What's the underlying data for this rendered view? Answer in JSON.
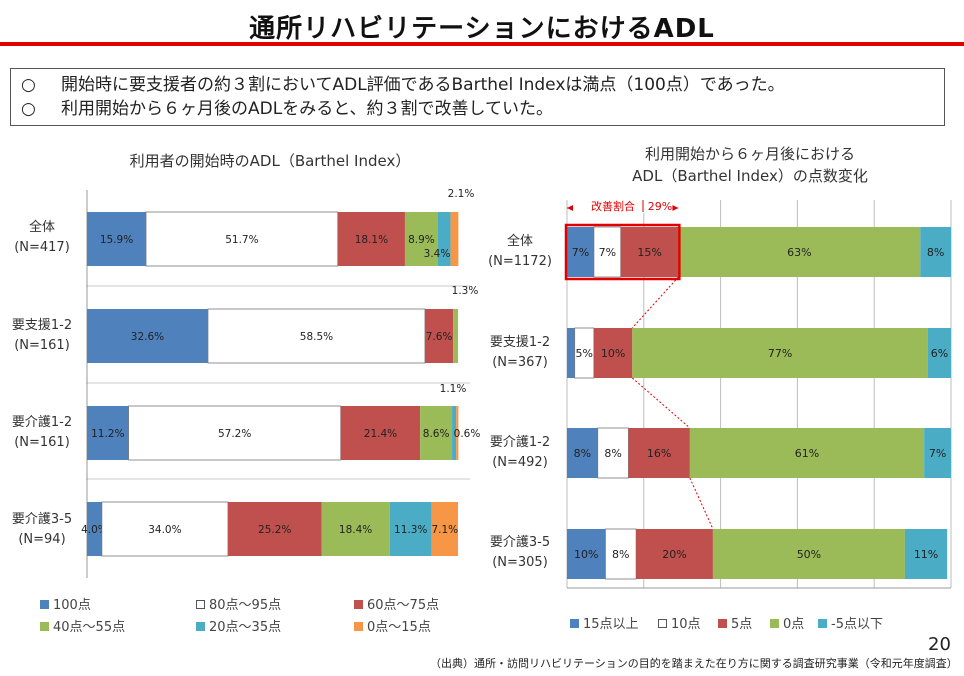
{
  "page": {
    "title": "通所リハビリテーションにおけるADL",
    "summary": [
      {
        "bullet": "○",
        "text": "開始時に要支援者の約３割においてADL評価であるBarthel Indexは満点（100点）であった。"
      },
      {
        "bullet": "○",
        "text": "利用開始から６ヶ月後のADLをみると、約３割で改善していた。"
      }
    ],
    "page_number": "20",
    "source": "（出典）通所・訪問リハビリテーションの目的を踏まえた在り方に関する調査研究事業（令和元年度調査）"
  },
  "chart_data": [
    {
      "type": "bar",
      "orientation": "horizontal",
      "stacked": true,
      "title": "利用者の開始時のADL（Barthel Index）",
      "categories": [
        {
          "name": "全体",
          "n": "(N=417)"
        },
        {
          "name": "要支援1-2",
          "n": "(N=161)"
        },
        {
          "name": "要介護1-2",
          "n": "(N=161)"
        },
        {
          "name": "要介護3-5",
          "n": "(N=94)"
        }
      ],
      "series": [
        {
          "name": "100点",
          "color": "#4f81bd",
          "values": [
            15.9,
            32.6,
            11.2,
            4.0
          ],
          "labels": [
            "15.9%",
            "32.6%",
            "11.2%",
            "4.0%"
          ]
        },
        {
          "name": "80点～95点",
          "color": "#ffffff",
          "values": [
            51.7,
            58.5,
            57.2,
            34.0
          ],
          "labels": [
            "51.7%",
            "58.5%",
            "57.2%",
            "34.0%"
          ]
        },
        {
          "name": "60点～75点",
          "color": "#c0504d",
          "values": [
            18.1,
            7.6,
            21.4,
            25.2
          ],
          "labels": [
            "18.1%",
            "7.6%",
            "21.4%",
            "25.2%"
          ]
        },
        {
          "name": "40点～55点",
          "color": "#9bbb59",
          "values": [
            8.9,
            1.3,
            8.6,
            18.4
          ],
          "labels": [
            "8.9%",
            "1.3%",
            "8.6%",
            "18.4%"
          ]
        },
        {
          "name": "20点～35点",
          "color": "#4bacc6",
          "values": [
            3.4,
            0.0,
            1.1,
            11.3
          ],
          "labels": [
            "3.4%",
            "",
            "1.1%",
            "11.3%"
          ]
        },
        {
          "name": "0点～15点",
          "color": "#f79646",
          "values": [
            2.1,
            0.0,
            0.6,
            7.1
          ],
          "labels": [
            "2.1%",
            "",
            "0.6%",
            "7.1%"
          ]
        }
      ],
      "xlim": [
        0,
        100
      ],
      "legend_position": "bottom"
    },
    {
      "type": "bar",
      "orientation": "horizontal",
      "stacked": true,
      "title": [
        "利用開始から６ヶ月後における",
        "ADL（Barthel Index）の点数変化"
      ],
      "categories": [
        {
          "name": "全体",
          "n": "(N=1172)"
        },
        {
          "name": "要支援1-2",
          "n": "(N=367)"
        },
        {
          "name": "要介護1-2",
          "n": "(N=492)"
        },
        {
          "name": "要介護3-5",
          "n": "(N=305)"
        }
      ],
      "series": [
        {
          "name": "15点以上",
          "color": "#4f81bd",
          "values": [
            7,
            2,
            8,
            10
          ],
          "labels": [
            "7%",
            "",
            "8%",
            "10%"
          ]
        },
        {
          "name": "10点",
          "color": "#ffffff",
          "values": [
            7,
            5,
            8,
            8
          ],
          "labels": [
            "7%",
            "5%",
            "8%",
            "8%"
          ]
        },
        {
          "name": "5点",
          "color": "#c0504d",
          "values": [
            15,
            10,
            16,
            20
          ],
          "labels": [
            "15%",
            "10%",
            "16%",
            "20%"
          ]
        },
        {
          "name": "0点",
          "color": "#9bbb59",
          "values": [
            63,
            77,
            61,
            50
          ],
          "labels": [
            "63%",
            "77%",
            "61%",
            "50%"
          ]
        },
        {
          "name": "-5点以下",
          "color": "#4bacc6",
          "values": [
            8,
            6,
            7,
            11
          ],
          "labels": [
            "8%",
            "6%",
            "7%",
            "11%"
          ]
        }
      ],
      "xlim": [
        0,
        100
      ],
      "grid": true,
      "annotation": {
        "label": "改善割合",
        "value": "29%"
      },
      "legend_position": "bottom"
    }
  ]
}
